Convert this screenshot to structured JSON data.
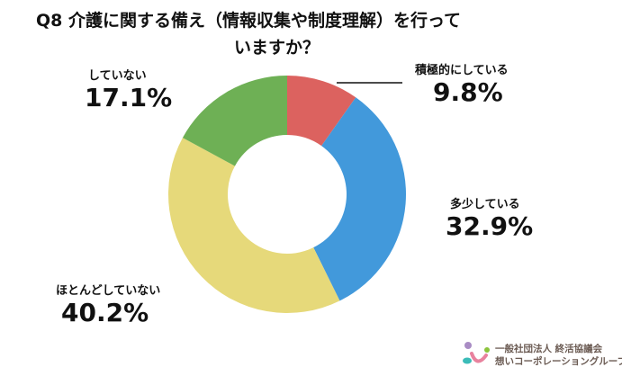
{
  "chart_data": {
    "type": "pie",
    "donut": true,
    "title_line1": "Q8 介護に関する備え（情報収集や制度理解）を行って",
    "title_line2": "いますか？",
    "slices": [
      {
        "label": "積極的にしている",
        "value": 9.8,
        "display": "9.8%",
        "color": "#dc625f"
      },
      {
        "label": "多少している",
        "value": 32.9,
        "display": "32.9%",
        "color": "#4299db"
      },
      {
        "label": "ほとんどしていない",
        "value": 40.2,
        "display": "40.2%",
        "color": "#e6d97a"
      },
      {
        "label": "していない",
        "value": 17.1,
        "display": "17.1%",
        "color": "#6eb055"
      }
    ],
    "start": "top",
    "direction": "clockwise"
  },
  "logo": {
    "line1": "一般社団法人 終活協議会",
    "line2": "想いコーポレーショングループ"
  }
}
